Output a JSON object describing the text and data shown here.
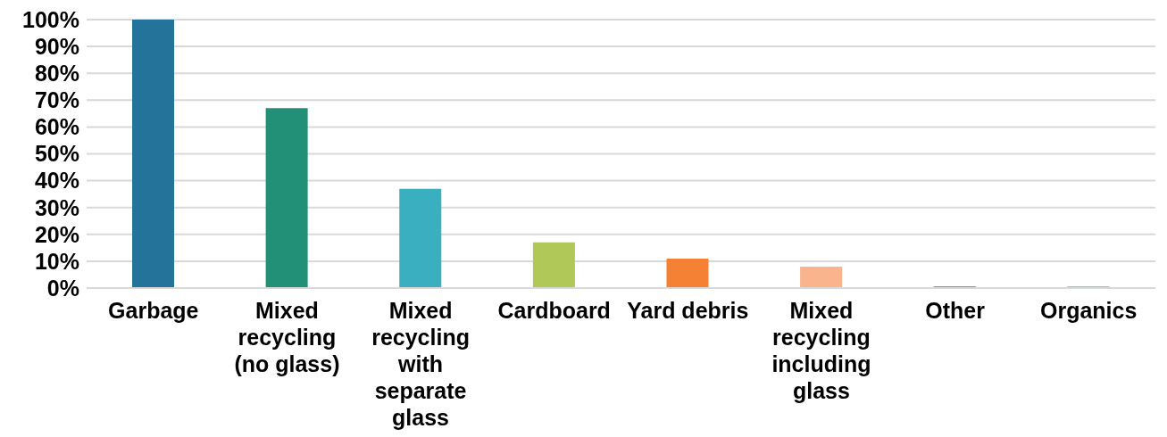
{
  "chart_data": {
    "type": "bar",
    "categories": [
      "Garbage",
      "Mixed recycling (no glass)",
      "Mixed recycling with separate glass",
      "Cardboard",
      "Yard debris",
      "Mixed recycling including glass",
      "Other",
      "Organics"
    ],
    "values": [
      100,
      67,
      37,
      17,
      11,
      8,
      0.5,
      0.5
    ],
    "colors": [
      "#23739a",
      "#228f77",
      "#3aafbf",
      "#b0c857",
      "#f48134",
      "#f9b38d",
      "#1a1a1a",
      "#2e7da1"
    ],
    "ylim": [
      0,
      100
    ],
    "yticks": [
      {
        "value": 0,
        "label": "0%"
      },
      {
        "value": 10,
        "label": "10%"
      },
      {
        "value": 20,
        "label": "20%"
      },
      {
        "value": 30,
        "label": "30%"
      },
      {
        "value": 40,
        "label": "40%"
      },
      {
        "value": 50,
        "label": "50%"
      },
      {
        "value": 60,
        "label": "60%"
      },
      {
        "value": 70,
        "label": "70%"
      },
      {
        "value": 80,
        "label": "80%"
      },
      {
        "value": 90,
        "label": "90%"
      },
      {
        "value": 100,
        "label": "100%"
      }
    ],
    "grid": "y"
  }
}
